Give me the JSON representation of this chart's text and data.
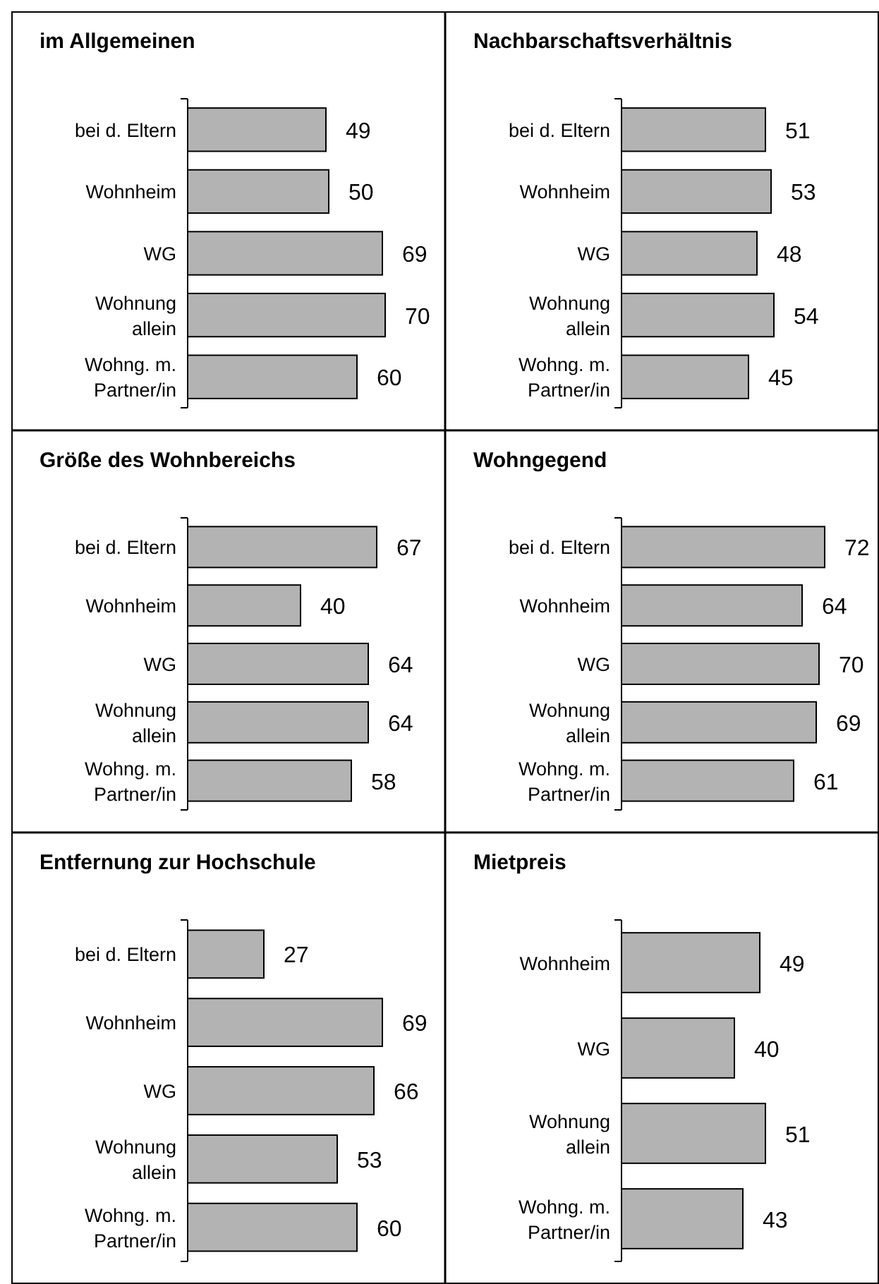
{
  "chart_data": [
    {
      "type": "bar",
      "orientation": "horizontal",
      "title": "im Allgemeinen",
      "categories": [
        "bei d. Eltern",
        "Wohnheim",
        "WG",
        "Wohnung allein",
        "Wohng. m. Partner/in"
      ],
      "values": [
        49,
        50,
        69,
        70,
        60
      ],
      "color": "#b3b3b3",
      "data_labels": true
    },
    {
      "type": "bar",
      "orientation": "horizontal",
      "title": "Nachbarschaftsverhältnis",
      "categories": [
        "bei d. Eltern",
        "Wohnheim",
        "WG",
        "Wohnung allein",
        "Wohng. m. Partner/in"
      ],
      "values": [
        51,
        53,
        48,
        54,
        45
      ],
      "color": "#b3b3b3",
      "data_labels": true
    },
    {
      "type": "bar",
      "orientation": "horizontal",
      "title": "Größe des Wohnbereichs",
      "categories": [
        "bei d. Eltern",
        "Wohnheim",
        "WG",
        "Wohnung allein",
        "Wohng. m. Partner/in"
      ],
      "values": [
        67,
        40,
        64,
        64,
        58
      ],
      "color": "#b3b3b3",
      "data_labels": true
    },
    {
      "type": "bar",
      "orientation": "horizontal",
      "title": "Wohngegend",
      "categories": [
        "bei d. Eltern",
        "Wohnheim",
        "WG",
        "Wohnung allein",
        "Wohng. m. Partner/in"
      ],
      "values": [
        72,
        64,
        70,
        69,
        61
      ],
      "color": "#b3b3b3",
      "data_labels": true
    },
    {
      "type": "bar",
      "orientation": "horizontal",
      "title": "Entfernung zur Hochschule",
      "categories": [
        "bei d. Eltern",
        "Wohnheim",
        "WG",
        "Wohnung allein",
        "Wohng. m. Partner/in"
      ],
      "values": [
        27,
        69,
        66,
        53,
        60
      ],
      "color": "#b3b3b3",
      "data_labels": true
    },
    {
      "type": "bar",
      "orientation": "horizontal",
      "title": "Mietpreis",
      "categories": [
        "Wohnheim",
        "WG",
        "Wohnung allein",
        "Wohng. m. Partner/in"
      ],
      "values": [
        49,
        40,
        51,
        43
      ],
      "color": "#b3b3b3",
      "data_labels": true
    }
  ]
}
